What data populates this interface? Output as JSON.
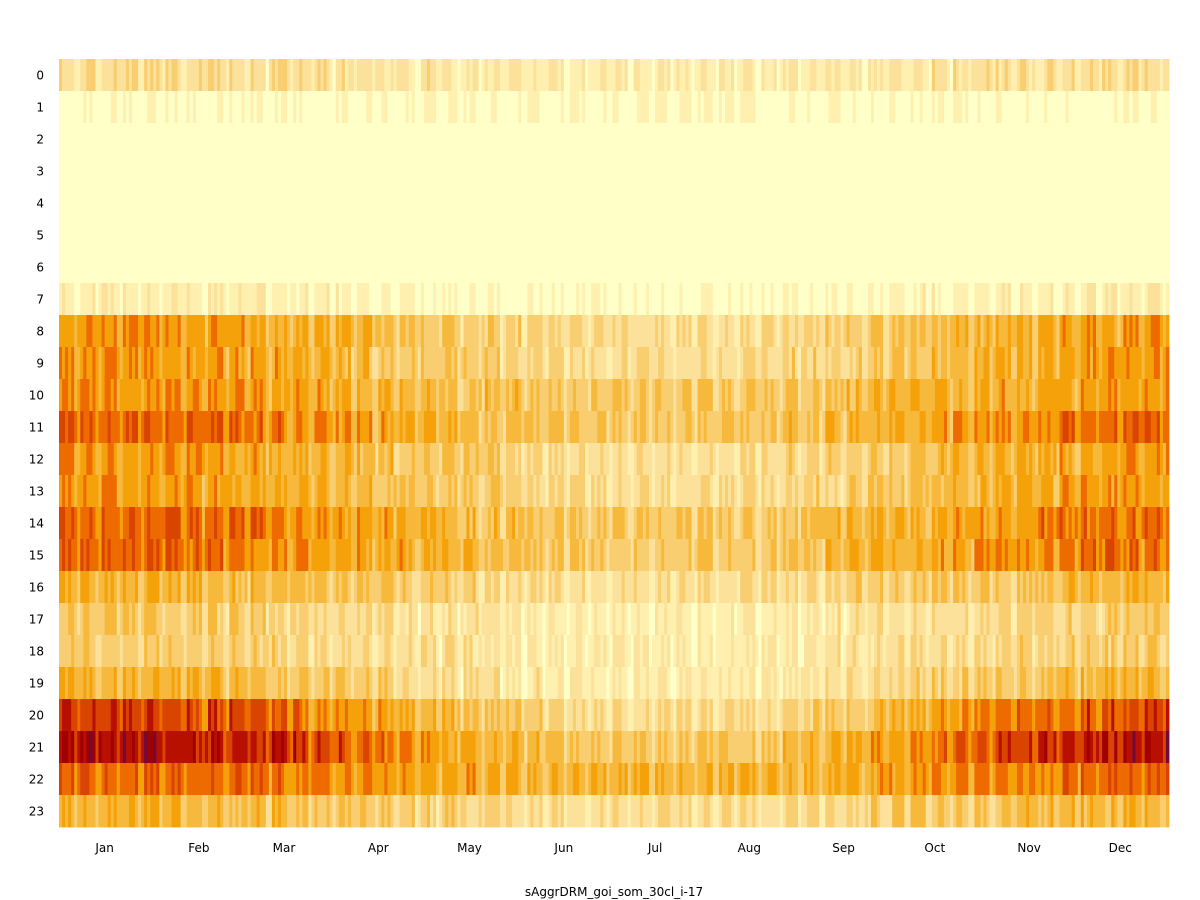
{
  "chart_data": {
    "type": "heatmap",
    "title": "",
    "xlabel": "sAggrDRM_goi_som_30cl_i-17",
    "ylabel": "",
    "grid": false,
    "legend": "none",
    "colormap": "YlOrRd",
    "colors": [
      "#ffffc8",
      "#fff0b0",
      "#fbe19a",
      "#f8ce70",
      "#f7b93b",
      "#f5a10a",
      "#ee6b00",
      "#d94400",
      "#b81000",
      "#a00000",
      "#6e0a3c"
    ],
    "x_tick_labels": [
      "Jan",
      "Feb",
      "Mar",
      "Apr",
      "May",
      "Jun",
      "Jul",
      "Aug",
      "Sep",
      "Oct",
      "Nov",
      "Dec"
    ],
    "y_tick_labels": [
      "0",
      "1",
      "2",
      "3",
      "4",
      "5",
      "6",
      "7",
      "8",
      "9",
      "10",
      "11",
      "12",
      "13",
      "14",
      "15",
      "16",
      "17",
      "18",
      "19",
      "20",
      "21",
      "22",
      "23"
    ],
    "days": 365,
    "hourly_profile": {
      "winter": [
        2,
        0,
        0,
        0,
        0,
        0,
        0,
        1,
        5,
        5,
        5,
        6,
        5,
        5,
        6,
        6,
        4,
        3,
        3,
        4,
        7,
        8,
        6,
        4
      ],
      "summer": [
        1,
        0,
        0,
        0,
        0,
        0,
        0,
        0,
        2,
        2,
        3,
        3,
        2,
        2,
        3,
        3,
        2,
        1,
        1,
        1,
        2,
        3,
        4,
        2
      ]
    },
    "value_range": [
      0,
      10
    ]
  }
}
